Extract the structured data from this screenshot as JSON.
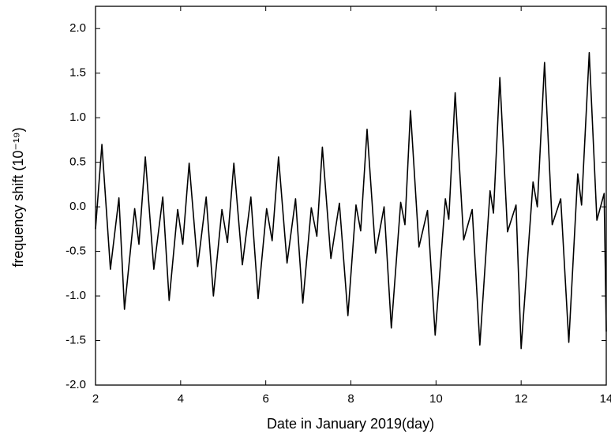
{
  "chart_data": {
    "type": "line",
    "x_label": "Date in January 2019(day)",
    "y_label": "frequency shift (10⁻¹⁹)",
    "xlim": [
      2,
      14
    ],
    "ylim": [
      -2,
      2.25
    ],
    "xticks": [
      2,
      4,
      6,
      8,
      10,
      12,
      14
    ],
    "yticks": [
      {
        "value": -2,
        "label": "-2.0"
      },
      -1.5,
      {
        "value": -1,
        "label": "-1.0"
      },
      -0.5,
      {
        "value": 0,
        "label": "0.0"
      },
      0.5,
      {
        "value": 1,
        "label": "1.0"
      },
      1.5,
      {
        "value": 2,
        "label": "2.0"
      }
    ],
    "series": [
      {
        "color": "#000000",
        "x": [
          2.0,
          2.15,
          2.35,
          2.55,
          2.68,
          2.92,
          3.02,
          3.17,
          3.37,
          3.58,
          3.73,
          3.93,
          4.05,
          4.2,
          4.4,
          4.6,
          4.77,
          4.97,
          5.1,
          5.25,
          5.45,
          5.65,
          5.82,
          6.02,
          6.15,
          6.3,
          6.5,
          6.7,
          6.87,
          7.07,
          7.2,
          7.33,
          7.53,
          7.73,
          7.93,
          8.12,
          8.23,
          8.38,
          8.58,
          8.78,
          8.95,
          9.17,
          9.27,
          9.4,
          9.6,
          9.8,
          9.98,
          10.22,
          10.3,
          10.45,
          10.65,
          10.85,
          11.03,
          11.27,
          11.35,
          11.5,
          11.68,
          11.88,
          12.0,
          12.28,
          12.38,
          12.55,
          12.73,
          12.93,
          13.12,
          13.33,
          13.42,
          13.6,
          13.78,
          13.95,
          14.0
        ],
        "values": [
          -0.25,
          0.7,
          -0.7,
          0.1,
          -1.15,
          -0.02,
          -0.42,
          0.56,
          -0.7,
          0.11,
          -1.05,
          -0.03,
          -0.42,
          0.49,
          -0.67,
          0.11,
          -1.0,
          -0.03,
          -0.4,
          0.49,
          -0.65,
          0.11,
          -1.03,
          -0.02,
          -0.38,
          0.56,
          -0.63,
          0.09,
          -1.08,
          -0.01,
          -0.33,
          0.67,
          -0.58,
          0.04,
          -1.22,
          0.02,
          -0.27,
          0.87,
          -0.52,
          0.0,
          -1.36,
          0.05,
          -0.2,
          1.08,
          -0.45,
          -0.04,
          -1.44,
          0.09,
          -0.14,
          1.28,
          -0.37,
          -0.03,
          -1.55,
          0.18,
          -0.07,
          1.45,
          -0.28,
          0.02,
          -1.59,
          0.28,
          0.0,
          1.62,
          -0.2,
          0.09,
          -1.52,
          0.37,
          0.02,
          1.73,
          -0.15,
          0.15,
          -1.4
        ]
      }
    ]
  }
}
